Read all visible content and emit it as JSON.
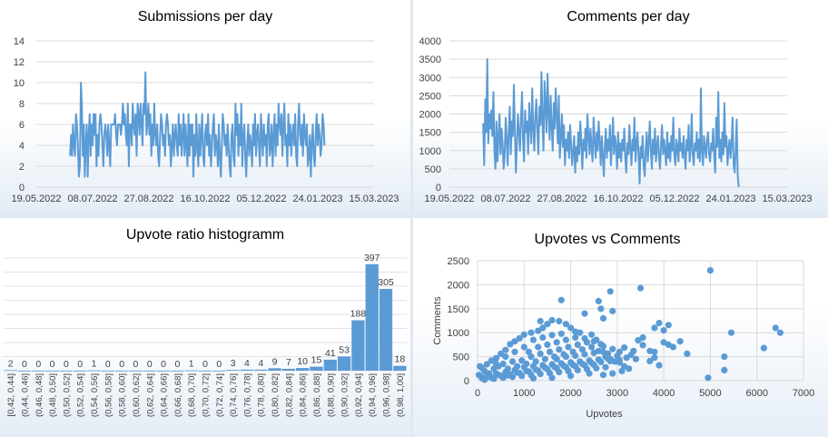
{
  "chart_data": [
    {
      "type": "line",
      "title": "Submissions per day",
      "ylim": [
        0,
        14
      ],
      "y_ticks": [
        "0",
        "2",
        "4",
        "6",
        "8",
        "10",
        "12",
        "14"
      ],
      "x_ticks": [
        "19.05.2022",
        "08.07.2022",
        "27.08.2022",
        "16.10.2022",
        "05.12.2022",
        "24.01.2023",
        "15.03.2023"
      ],
      "x_start": "19.05.2022",
      "x_end": "15.03.2023",
      "series_start": "18.06.2022",
      "series_end": "30.01.2023",
      "color": "#5b9bd5",
      "values": [
        3,
        5,
        3,
        6,
        4,
        3,
        7,
        6,
        4,
        1,
        2,
        10,
        8,
        3,
        6,
        1,
        4,
        6,
        1,
        5,
        7,
        3,
        6,
        4,
        7,
        5,
        7,
        2,
        5,
        3,
        6,
        7,
        6,
        4,
        2,
        5,
        6,
        5,
        3,
        6,
        4,
        2,
        6,
        6,
        6,
        6,
        7,
        5,
        4,
        6,
        6,
        6,
        5,
        6,
        8,
        6,
        7,
        5,
        4,
        8,
        2,
        6,
        6,
        4,
        8,
        6,
        5,
        7,
        3,
        8,
        7,
        5,
        8,
        6,
        4,
        8,
        7,
        11,
        5,
        6,
        8,
        5,
        7,
        3,
        6,
        4,
        8,
        5,
        4,
        6,
        3,
        2,
        5,
        7,
        6,
        4,
        5,
        3,
        6,
        7,
        6,
        4,
        5,
        2,
        4,
        6,
        3,
        5,
        6,
        4,
        3,
        7,
        4,
        6,
        3,
        5,
        7,
        3,
        6,
        4,
        2,
        7,
        3,
        6,
        4,
        6,
        1,
        5,
        3,
        7,
        4,
        2,
        6,
        3,
        5,
        7,
        3,
        2,
        5,
        6,
        4,
        7,
        3,
        5,
        2,
        4,
        6,
        7,
        3,
        5,
        4,
        2,
        6,
        3,
        1,
        4,
        7,
        6,
        4,
        5,
        3,
        6,
        4,
        2,
        1,
        5,
        6,
        3,
        2,
        8,
        5,
        7,
        3,
        6,
        4,
        8,
        2,
        5,
        6,
        3,
        1,
        4,
        6,
        3,
        5,
        4,
        2,
        6,
        4,
        7,
        3,
        5,
        6,
        4,
        2,
        7,
        5,
        3,
        6,
        4,
        5,
        2,
        6,
        7,
        3,
        4,
        6,
        2,
        5,
        7,
        3,
        6,
        4,
        8,
        6,
        5,
        7,
        3,
        6,
        8,
        4,
        5,
        2,
        7,
        4,
        6,
        3,
        5,
        6,
        4,
        7,
        3,
        2,
        6,
        8,
        5,
        4,
        6,
        3,
        7,
        5,
        4,
        6,
        2,
        3,
        5,
        1,
        4,
        6,
        3,
        2,
        5,
        7,
        4,
        6,
        5,
        3,
        4,
        7,
        6,
        4
      ]
    },
    {
      "type": "line",
      "title": "Comments per day",
      "ylim": [
        0,
        4000
      ],
      "y_ticks": [
        "0",
        "500",
        "1000",
        "1500",
        "2000",
        "2500",
        "3000",
        "3500",
        "4000"
      ],
      "x_ticks": [
        "19.05.2022",
        "08.07.2022",
        "27.08.2022",
        "16.10.2022",
        "05.12.2022",
        "24.01.2023",
        "15.03.2023"
      ],
      "x_start": "19.05.2022",
      "x_end": "15.03.2023",
      "series_start": "18.06.2022",
      "series_end": "31.01.2023",
      "color": "#5b9bd5",
      "values": [
        1750,
        600,
        2400,
        1500,
        3500,
        1200,
        2000,
        1600,
        2100,
        1400,
        2600,
        1000,
        500,
        1800,
        700,
        1400,
        2000,
        900,
        1600,
        1200,
        500,
        800,
        1900,
        1300,
        600,
        1500,
        2200,
        900,
        1800,
        1400,
        2800,
        1600,
        400,
        1200,
        2000,
        1500,
        1000,
        1900,
        2600,
        1300,
        700,
        2100,
        1500,
        1800,
        900,
        2300,
        1700,
        1200,
        2700,
        1600,
        1000,
        1900,
        2400,
        1500,
        900,
        2200,
        1700,
        3150,
        1800,
        1000,
        2900,
        2200,
        1500,
        3100,
        2000,
        1300,
        2500,
        1700,
        1000,
        2300,
        1600,
        2700,
        1900,
        1200,
        2500,
        800,
        1400,
        2000,
        1100,
        1700,
        600,
        1300,
        1000,
        1500,
        800,
        1700,
        1200,
        600,
        1000,
        1400,
        400,
        1100,
        700,
        1500,
        900,
        1800,
        1200,
        500,
        1300,
        1000,
        1600,
        800,
        2000,
        1400,
        900,
        1600,
        1100,
        700,
        1900,
        1300,
        800,
        1500,
        1000,
        1800,
        1200,
        600,
        1400,
        900,
        300,
        1100,
        1600,
        800,
        1300,
        1000,
        1700,
        600,
        1200,
        1900,
        900,
        1400,
        1100,
        500,
        1500,
        800,
        1200,
        700,
        1300,
        1000,
        1600,
        800,
        400,
        1200,
        900,
        1700,
        1100,
        600,
        1300,
        1000,
        1900,
        700,
        1200,
        1500,
        900,
        100,
        1100,
        800,
        1400,
        600,
        300,
        1000,
        1500,
        700,
        1200,
        1800,
        1000,
        500,
        1300,
        900,
        1600,
        700,
        1100,
        1400,
        800,
        500,
        1200,
        1700,
        900,
        1300,
        1000,
        600,
        1500,
        800,
        1200,
        700,
        1400,
        1000,
        1900,
        900,
        600,
        1300,
        1100,
        700,
        1600,
        1000,
        1200,
        800,
        1400,
        900,
        500,
        1300,
        1000,
        1700,
        700,
        1100,
        2000,
        900,
        600,
        1200,
        1000,
        1500,
        800,
        1300,
        700,
        2700,
        1000,
        600,
        1400,
        1100,
        800,
        1300,
        1500,
        900,
        700,
        1200,
        1000,
        1600,
        800,
        400,
        1900,
        1100,
        2600,
        800,
        1300,
        700,
        1500,
        900,
        2300,
        1100,
        1400,
        600,
        1000,
        1300,
        800,
        1200,
        1900,
        600,
        400,
        1000,
        1850,
        300,
        0
      ]
    },
    {
      "type": "bar",
      "title": "Upvote ratio histogramm",
      "categories": [
        "[0,42, 0,44]",
        "(0,44, 0,46]",
        "(0,46, 0,48]",
        "(0,48, 0,50]",
        "(0,50, 0,52]",
        "(0,52, 0,54]",
        "(0,54, 0,56]",
        "(0,56, 0,58]",
        "(0,58, 0,60]",
        "(0,60, 0,62]",
        "(0,62, 0,64]",
        "(0,64, 0,66]",
        "(0,66, 0,68]",
        "(0,68, 0,70]",
        "(0,70, 0,72]",
        "(0,72, 0,74]",
        "(0,74, 0,76]",
        "(0,76, 0,78]",
        "(0,78, 0,80]",
        "(0,80, 0,82]",
        "(0,82, 0,84]",
        "(0,84, 0,86]",
        "(0,86, 0,88]",
        "(0,88, 0,90]",
        "(0,90, 0,92]",
        "(0,92, 0,94]",
        "(0,94, 0,96]",
        "(0,96, 0,98]",
        "(0,98, 1,00]"
      ],
      "values": [
        2,
        0,
        0,
        0,
        0,
        0,
        1,
        0,
        0,
        0,
        0,
        0,
        0,
        1,
        0,
        0,
        3,
        4,
        4,
        9,
        7,
        10,
        15,
        41,
        53,
        188,
        397,
        305,
        18
      ],
      "ylim": [
        0,
        420
      ],
      "color": "#5b9bd5"
    },
    {
      "type": "scatter",
      "title": "Upvotes  vs Comments",
      "xlabel": "Upvotes",
      "ylabel": "Comments",
      "xlim": [
        0,
        7000
      ],
      "ylim": [
        0,
        2500
      ],
      "x_ticks": [
        "0",
        "1000",
        "2000",
        "3000",
        "4000",
        "5000",
        "6000",
        "7000"
      ],
      "y_ticks": [
        "0",
        "500",
        "1000",
        "1500",
        "2000",
        "2500"
      ],
      "color": "#5b9bd5",
      "points": [
        [
          5000,
          2300
        ],
        [
          3500,
          1930
        ],
        [
          2850,
          1860
        ],
        [
          1800,
          1680
        ],
        [
          2600,
          1660
        ],
        [
          2650,
          1500
        ],
        [
          2900,
          1450
        ],
        [
          2300,
          1400
        ],
        [
          2700,
          1300
        ],
        [
          4100,
          1160
        ],
        [
          3900,
          1200
        ],
        [
          4000,
          1050
        ],
        [
          3800,
          1100
        ],
        [
          5450,
          1000
        ],
        [
          6400,
          1100
        ],
        [
          6500,
          1000
        ],
        [
          6150,
          680
        ],
        [
          5300,
          500
        ],
        [
          5300,
          220
        ],
        [
          4950,
          60
        ],
        [
          4000,
          800
        ],
        [
          4200,
          700
        ],
        [
          4100,
          750
        ],
        [
          4350,
          820
        ],
        [
          4500,
          560
        ],
        [
          3700,
          620
        ],
        [
          3800,
          600
        ],
        [
          3800,
          480
        ],
        [
          3700,
          410
        ],
        [
          3900,
          320
        ],
        [
          3550,
          900
        ],
        [
          3450,
          840
        ],
        [
          3550,
          740
        ],
        [
          3350,
          620
        ],
        [
          3300,
          540
        ],
        [
          3150,
          690
        ],
        [
          3050,
          600
        ],
        [
          2900,
          660
        ],
        [
          2800,
          560
        ],
        [
          2600,
          620
        ],
        [
          2700,
          720
        ],
        [
          2500,
          820
        ],
        [
          2450,
          960
        ],
        [
          2300,
          880
        ],
        [
          2200,
          1000
        ],
        [
          2100,
          1020
        ],
        [
          2000,
          1100
        ],
        [
          1900,
          1180
        ],
        [
          1750,
          1240
        ],
        [
          1600,
          1260
        ],
        [
          1500,
          1180
        ],
        [
          1350,
          1240
        ],
        [
          1400,
          1100
        ],
        [
          1300,
          1040
        ],
        [
          1150,
          1000
        ],
        [
          1000,
          960
        ],
        [
          900,
          880
        ],
        [
          800,
          820
        ],
        [
          700,
          760
        ],
        [
          600,
          640
        ],
        [
          500,
          560
        ],
        [
          400,
          470
        ],
        [
          300,
          420
        ],
        [
          200,
          340
        ],
        [
          100,
          260
        ],
        [
          50,
          300
        ],
        [
          30,
          120
        ],
        [
          80,
          80
        ],
        [
          150,
          200
        ],
        [
          250,
          150
        ],
        [
          350,
          250
        ],
        [
          450,
          300
        ],
        [
          550,
          350
        ],
        [
          650,
          250
        ],
        [
          750,
          400
        ],
        [
          850,
          300
        ],
        [
          950,
          420
        ],
        [
          1050,
          350
        ],
        [
          1150,
          500
        ],
        [
          1250,
          400
        ],
        [
          1350,
          560
        ],
        [
          1450,
          450
        ],
        [
          1550,
          600
        ],
        [
          1650,
          500
        ],
        [
          1750,
          650
        ],
        [
          1850,
          550
        ],
        [
          1950,
          700
        ],
        [
          2050,
          600
        ],
        [
          2150,
          750
        ],
        [
          2250,
          650
        ],
        [
          2350,
          800
        ],
        [
          2450,
          700
        ],
        [
          2550,
          850
        ],
        [
          2650,
          760
        ],
        [
          2750,
          500
        ],
        [
          2850,
          450
        ],
        [
          2950,
          400
        ],
        [
          3050,
          380
        ],
        [
          3150,
          300
        ],
        [
          3250,
          250
        ],
        [
          200,
          80
        ],
        [
          400,
          150
        ],
        [
          600,
          180
        ],
        [
          800,
          220
        ],
        [
          1000,
          280
        ],
        [
          1200,
          300
        ],
        [
          1400,
          320
        ],
        [
          1600,
          340
        ],
        [
          1800,
          360
        ],
        [
          2000,
          380
        ],
        [
          2200,
          400
        ],
        [
          2400,
          420
        ],
        [
          2600,
          440
        ],
        [
          2800,
          460
        ],
        [
          300,
          60
        ],
        [
          500,
          100
        ],
        [
          700,
          130
        ],
        [
          900,
          160
        ],
        [
          1100,
          190
        ],
        [
          1300,
          210
        ],
        [
          1500,
          240
        ],
        [
          1700,
          260
        ],
        [
          1900,
          280
        ],
        [
          2100,
          300
        ],
        [
          2300,
          320
        ],
        [
          2500,
          330
        ],
        [
          100,
          50
        ],
        [
          250,
          90
        ],
        [
          450,
          120
        ],
        [
          650,
          110
        ],
        [
          850,
          170
        ],
        [
          1050,
          200
        ],
        [
          1250,
          230
        ],
        [
          1450,
          270
        ],
        [
          1650,
          290
        ],
        [
          1850,
          310
        ],
        [
          2050,
          330
        ],
        [
          2250,
          350
        ],
        [
          2450,
          370
        ],
        [
          2650,
          390
        ],
        [
          2850,
          410
        ],
        [
          3050,
          430
        ],
        [
          150,
          20
        ],
        [
          350,
          40
        ],
        [
          550,
          60
        ],
        [
          750,
          80
        ],
        [
          950,
          100
        ],
        [
          1150,
          120
        ],
        [
          1350,
          140
        ],
        [
          1550,
          160
        ],
        [
          1750,
          180
        ],
        [
          1950,
          200
        ],
        [
          2150,
          220
        ],
        [
          2350,
          240
        ],
        [
          2550,
          260
        ],
        [
          2750,
          280
        ],
        [
          1100,
          600
        ],
        [
          1300,
          700
        ],
        [
          1500,
          750
        ],
        [
          1700,
          800
        ],
        [
          1900,
          850
        ],
        [
          2100,
          900
        ],
        [
          1200,
          850
        ],
        [
          1400,
          900
        ],
        [
          1600,
          950
        ],
        [
          1800,
          980
        ],
        [
          1000,
          700
        ],
        [
          800,
          600
        ],
        [
          600,
          500
        ],
        [
          400,
          350
        ],
        [
          1700,
          450
        ],
        [
          1900,
          500
        ],
        [
          2100,
          520
        ],
        [
          2300,
          550
        ],
        [
          2500,
          580
        ],
        [
          2700,
          600
        ],
        [
          3000,
          520
        ],
        [
          3200,
          480
        ],
        [
          3400,
          450
        ],
        [
          3100,
          200
        ],
        [
          2900,
          150
        ],
        [
          2700,
          120
        ],
        [
          1200,
          50
        ],
        [
          1600,
          60
        ],
        [
          2000,
          100
        ],
        [
          2400,
          150
        ]
      ]
    }
  ]
}
